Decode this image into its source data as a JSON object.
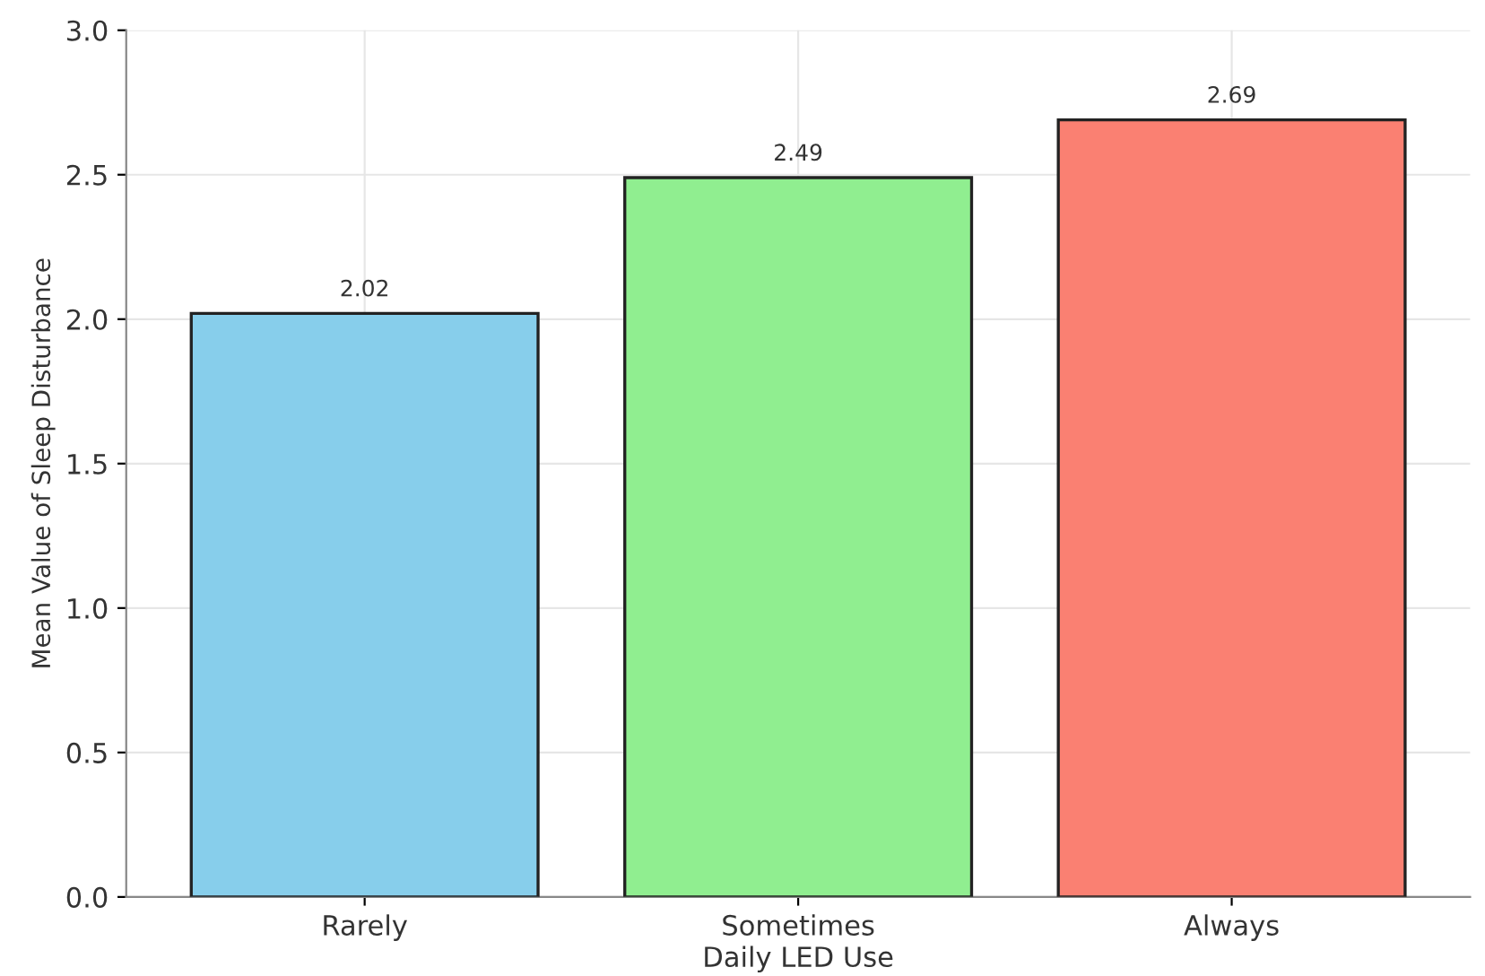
{
  "chart_data": {
    "type": "bar",
    "xlabel": "Daily LED Use",
    "ylabel": "Mean Value of Sleep Disturbance",
    "categories": [
      "Rarely",
      "Sometimes",
      "Always"
    ],
    "values": [
      2.02,
      2.49,
      2.69
    ],
    "colors": [
      "#87ceeb",
      "#90ee90",
      "#fa8072"
    ],
    "ylim": [
      0,
      3.0
    ],
    "yticks": [
      {
        "value": 0,
        "label": "0.0"
      },
      0.5,
      {
        "value": 1,
        "label": "1.0"
      },
      1.5,
      {
        "value": 2,
        "label": "2.0"
      },
      2.5,
      {
        "value": 3,
        "label": "3.0"
      }
    ],
    "grid": true,
    "data_labels": true
  }
}
